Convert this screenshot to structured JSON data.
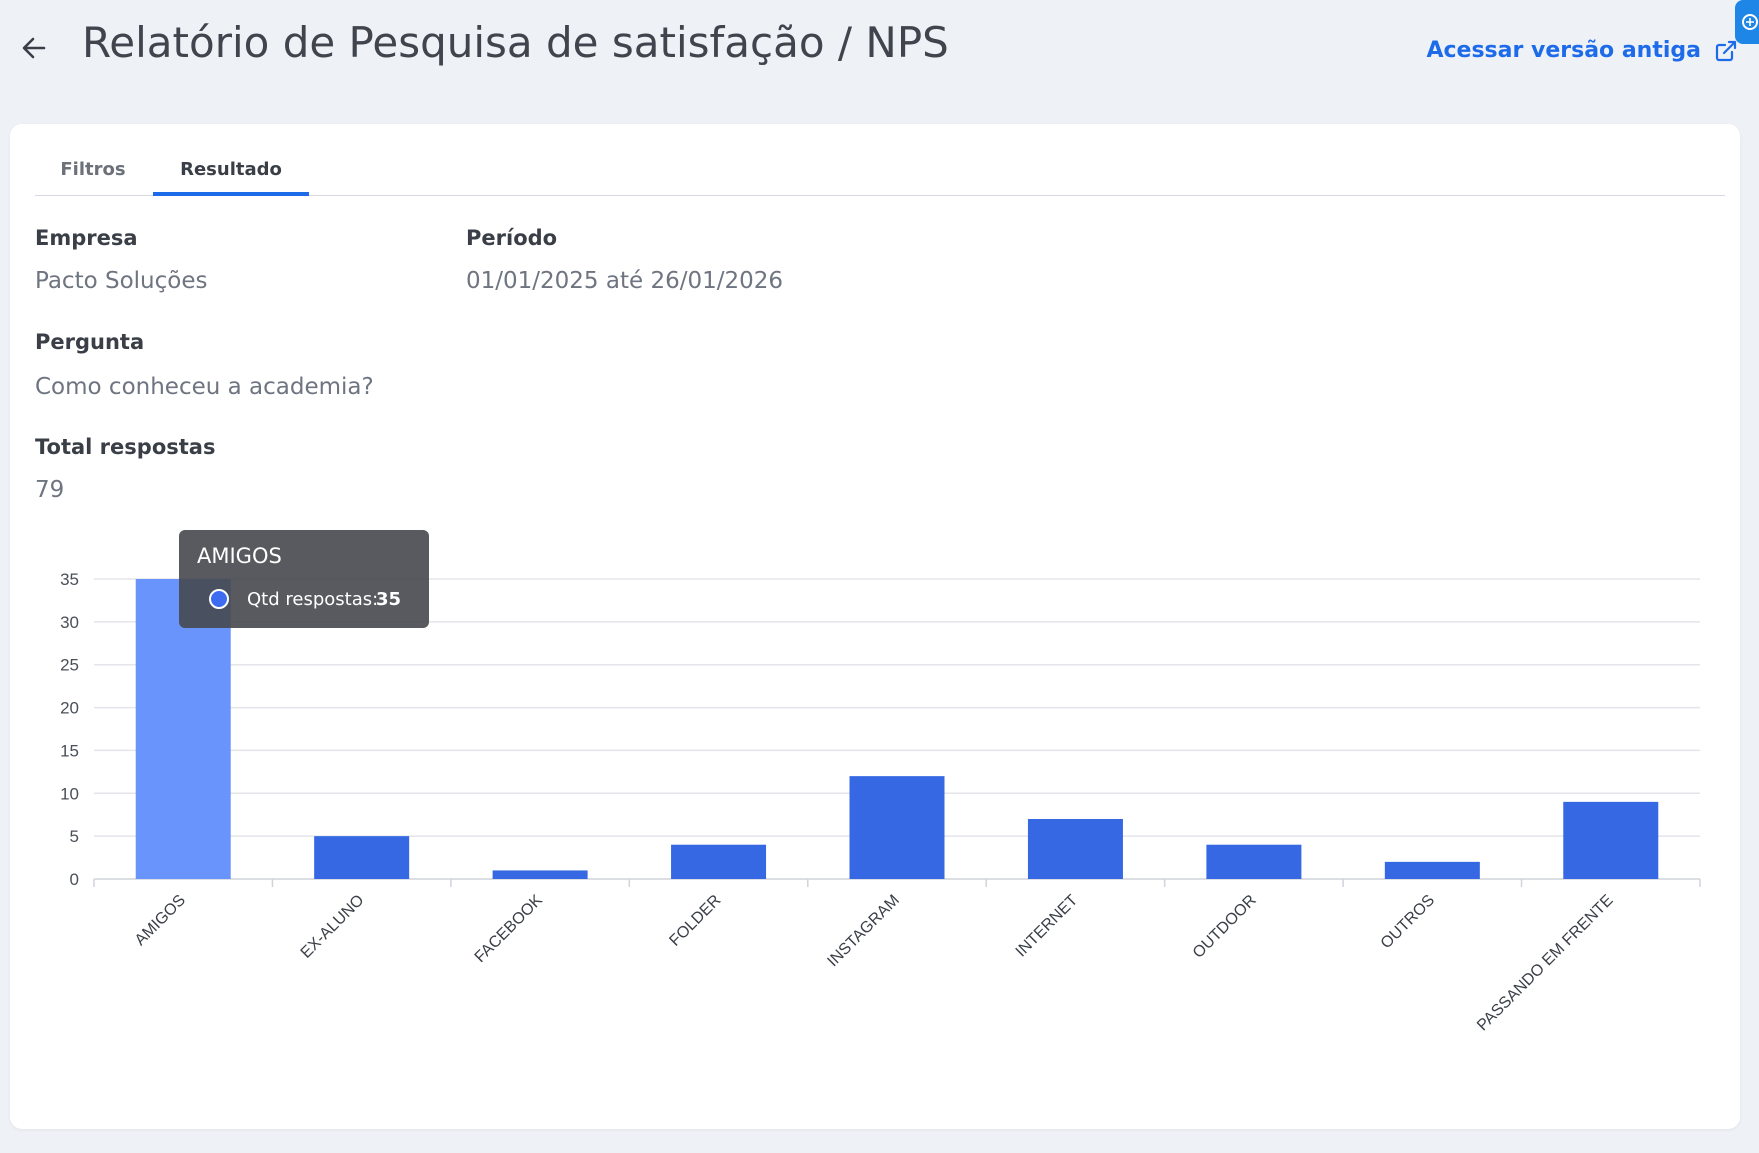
{
  "header": {
    "title": "Relatório de Pesquisa de satisfação / NPS",
    "old_version_link": "Acessar versão antiga"
  },
  "tabs": [
    {
      "label": "Filtros",
      "active": false
    },
    {
      "label": "Resultado",
      "active": true
    }
  ],
  "report": {
    "empresa_label": "Empresa",
    "empresa_value": "Pacto Soluções",
    "periodo_label": "Período",
    "periodo_value": "01/01/2025 até 26/01/2026",
    "pergunta_label": "Pergunta",
    "pergunta_value": "Como conheceu a academia?",
    "total_label": "Total respostas",
    "total_value": "79"
  },
  "tooltip": {
    "title": "AMIGOS",
    "series_label": "Qtd respostas:",
    "value": "35"
  },
  "colors": {
    "accent": "#1e6bea",
    "bar": "#3568e2",
    "bar_highlight": "#6994fb",
    "grid": "#e3e5ea"
  },
  "chart_data": {
    "type": "bar",
    "categories": [
      "AMIGOS",
      "EX-ALUNO",
      "FACEBOOK",
      "FOLDER",
      "INSTAGRAM",
      "INTERNET",
      "OUTDOOR",
      "OUTROS",
      "PASSANDO EM FRENTE"
    ],
    "series": [
      {
        "name": "Qtd respostas",
        "values": [
          35,
          5,
          1,
          4,
          12,
          7,
          4,
          2,
          9
        ]
      }
    ],
    "yticks": [
      0,
      5,
      10,
      15,
      20,
      25,
      30,
      35
    ],
    "ylim": [
      0,
      35
    ],
    "xlabel": "",
    "ylabel": "",
    "grid": true,
    "highlighted_category": "AMIGOS",
    "xtick_rotation": "-45"
  }
}
